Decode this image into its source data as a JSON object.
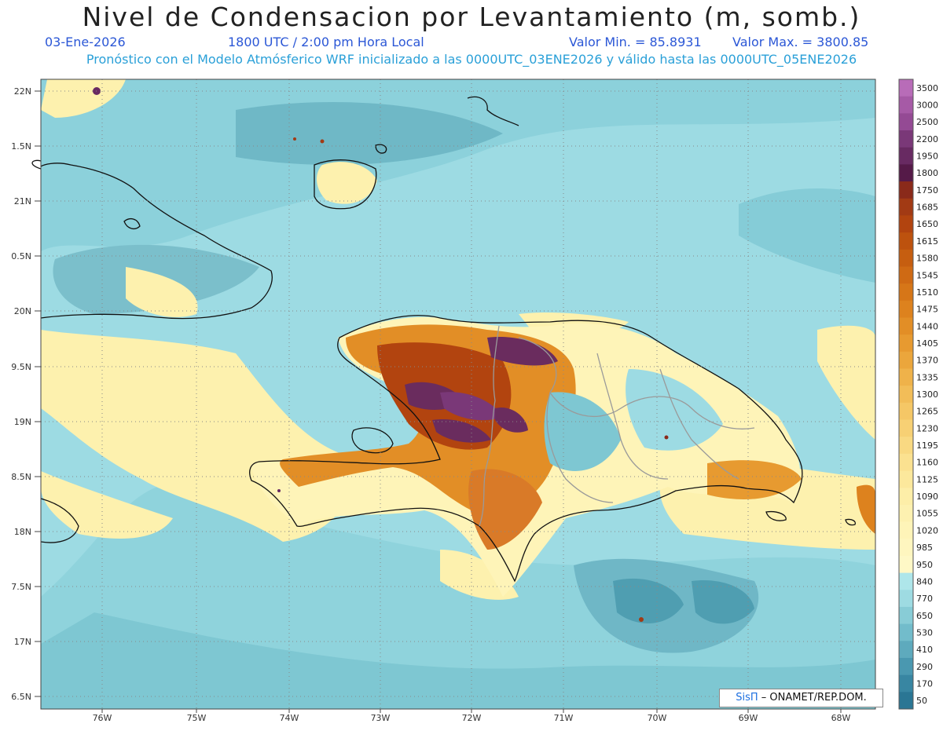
{
  "header": {
    "title": "Nivel de Condensacion por Levantamiento (m, somb.)",
    "date": "03-Ene-2026",
    "time": "1800 UTC / 2:00 pm Hora Local",
    "min_label": "Valor Min. = 85.8931",
    "max_label": "Valor Max. = 3800.85",
    "forecast_note": "Pronóstico con el Modelo Atmósferico WRF inicializado a las 0000UTC_03ENE2026 y válido hasta las  0000UTC_05ENE2026"
  },
  "axes": {
    "lat_labels": [
      "22N",
      "1.5N",
      "21N",
      "0.5N",
      "20N",
      "9.5N",
      "19N",
      "8.5N",
      "18N",
      "7.5N",
      "17N",
      "6.5N"
    ],
    "lon_labels": [
      "76W",
      "75W",
      "74W",
      "73W",
      "72W",
      "71W",
      "70W",
      "69W",
      "68W"
    ]
  },
  "legend": {
    "levels": [
      "3500",
      "3000",
      "2500",
      "2200",
      "1950",
      "1800",
      "1750",
      "1685",
      "1650",
      "1615",
      "1580",
      "1545",
      "1510",
      "1475",
      "1440",
      "1405",
      "1370",
      "1335",
      "1300",
      "1265",
      "1230",
      "1195",
      "1160",
      "1125",
      "1090",
      "1055",
      "1020",
      "985",
      "950",
      "840",
      "770",
      "650",
      "530",
      "410",
      "290",
      "170",
      "50"
    ],
    "colors": [
      "#b86cb8",
      "#a65aa6",
      "#944a94",
      "#7a3878",
      "#682a62",
      "#551a48",
      "#8a2a1a",
      "#a23a14",
      "#b2440f",
      "#bd520e",
      "#c65e10",
      "#cf6a14",
      "#d67618",
      "#dd821e",
      "#e28e26",
      "#e79a30",
      "#eba63c",
      "#efb24a",
      "#f2bd58",
      "#f5c766",
      "#f7d074",
      "#f9d982",
      "#fbe190",
      "#fce89c",
      "#fdeea8",
      "#fdf1b0",
      "#fef4b8",
      "#fef6bf",
      "#fef8c6",
      "#aee6ea",
      "#9edbe2",
      "#88ccd6",
      "#72bccb",
      "#5eaabd",
      "#4a98b0",
      "#3886a2",
      "#2a7694"
    ]
  },
  "credit": {
    "sis": "SisΠ",
    "org": " – ONAMET/REP.DOM."
  },
  "palette": {
    "sea_base": "#9ddbe3",
    "sea_mid": "#7ec7d2",
    "sea_dark": "#5aa8b8",
    "yellow": "#fdf1ae",
    "orange": "#d97a28",
    "brown": "#a5521e",
    "purple": "#6a2c5e"
  }
}
